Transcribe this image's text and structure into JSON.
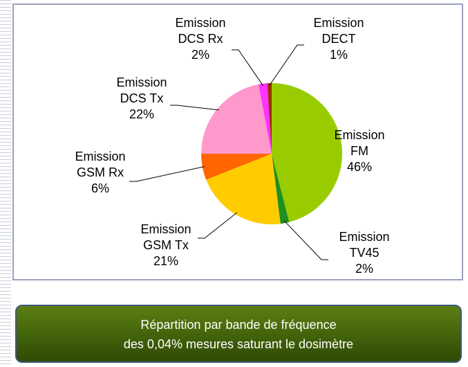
{
  "chart_data": {
    "type": "pie",
    "categories": [
      "Emission FM",
      "Emission TV45",
      "Emission GSM Tx",
      "Emission GSM Rx",
      "Emission DCS Tx",
      "Emission DCS Rx",
      "Emission DECT"
    ],
    "values": [
      46,
      2,
      21,
      6,
      22,
      2,
      1
    ],
    "value_labels": [
      "46%",
      "2%",
      "21%",
      "6%",
      "22%",
      "2%",
      "1%"
    ],
    "colors": [
      "#99cc00",
      "#1f8f1f",
      "#ffcc00",
      "#ff6600",
      "#ff99cc",
      "#ff33ff",
      "#993300"
    ],
    "caption": [
      "Répartition par bande de fréquence",
      "des 0,04% mesures saturant le dosimètre"
    ]
  }
}
